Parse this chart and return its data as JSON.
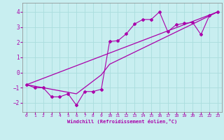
{
  "xlabel": "Windchill (Refroidissement éolien,°C)",
  "bg_color": "#c8eef0",
  "grid_color": "#aadddd",
  "line_color": "#aa00aa",
  "spine_color": "#888888",
  "xlim": [
    -0.5,
    23.5
  ],
  "ylim": [
    -2.6,
    4.6
  ],
  "xticks": [
    0,
    1,
    2,
    3,
    4,
    5,
    6,
    7,
    8,
    9,
    10,
    11,
    12,
    13,
    14,
    15,
    16,
    17,
    18,
    19,
    20,
    21,
    22,
    23
  ],
  "yticks": [
    -2,
    -1,
    0,
    1,
    2,
    3,
    4
  ],
  "scatter_x": [
    0,
    1,
    2,
    3,
    4,
    5,
    6,
    7,
    8,
    9,
    10,
    11,
    12,
    13,
    14,
    15,
    16,
    17,
    18,
    19,
    20,
    21,
    22,
    23
  ],
  "scatter_y": [
    -0.8,
    -1.0,
    -1.0,
    -1.6,
    -1.6,
    -1.4,
    -2.15,
    -1.25,
    -1.25,
    -1.1,
    2.05,
    2.1,
    2.55,
    3.2,
    3.5,
    3.5,
    4.0,
    2.7,
    3.15,
    3.25,
    3.3,
    2.5,
    3.75,
    4.0
  ],
  "line1_x": [
    0,
    23
  ],
  "line1_y": [
    -0.8,
    4.0
  ],
  "line2_x": [
    0,
    6,
    9,
    10,
    23
  ],
  "line2_y": [
    -0.8,
    -1.4,
    -0.15,
    0.55,
    4.0
  ],
  "figsize": [
    3.2,
    2.0
  ],
  "dpi": 100
}
